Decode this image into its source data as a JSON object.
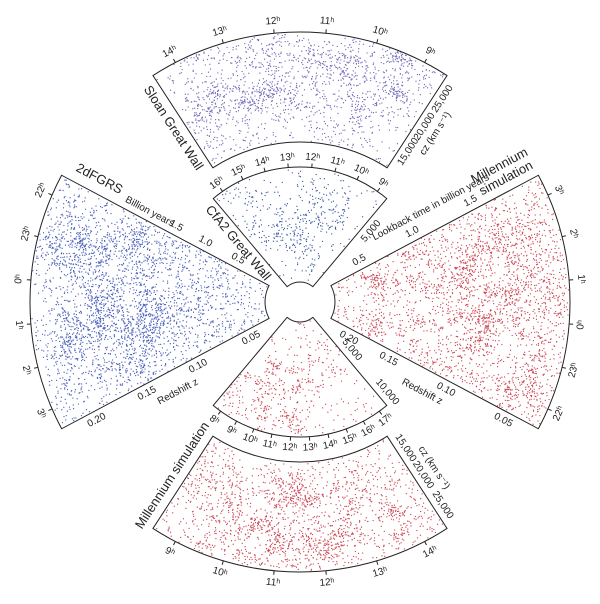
{
  "sloan": {
    "label": "Sloan Great Wall",
    "arc_ticks": [
      "14ʰ",
      "13ʰ",
      "12ʰ",
      "11ʰ",
      "10ʰ",
      "9ʰ"
    ],
    "cz_ticks": [
      "15,000",
      "20,000",
      "25,000"
    ],
    "cz_label": "cz (km s⁻¹)"
  },
  "cfa2": {
    "label": "CfA2 Great Wall",
    "arc_ticks": [
      "16ʰ",
      "15ʰ",
      "14ʰ",
      "13ʰ",
      "12ʰ",
      "11ʰ",
      "10ʰ",
      "9ʰ"
    ],
    "cz_ticks": [
      "5,000"
    ]
  },
  "twodf": {
    "label": "2dFGRS",
    "arc_ticks": [
      "22ʰ",
      "23ʰ",
      "0ʰ",
      "1ʰ",
      "2ʰ",
      "3ʰ"
    ],
    "time_label": "Billion years",
    "time_ticks": [
      "1.5",
      "1.0",
      "0.5"
    ],
    "z_label": "Redshift z",
    "z_ticks": [
      "0.05",
      "0.10",
      "0.15",
      "0.20"
    ]
  },
  "millennium_right": {
    "label": [
      "Millennium",
      "simulation"
    ],
    "arc_ticks": [
      "3ʰ",
      "2ʰ",
      "1ʰ",
      "0ʰ",
      "23ʰ",
      "22ʰ"
    ],
    "time_label": "Lookback time in billion years",
    "time_ticks": [
      "1.5",
      "1.0",
      "0.5"
    ],
    "z_label": "Redshift z",
    "z_ticks": [
      "0.20",
      "0.15",
      "0.10",
      "0.05"
    ]
  },
  "millennium_inner": {
    "arc_ticks": [
      "8ʰ",
      "9ʰ",
      "10ʰ",
      "11ʰ",
      "12ʰ",
      "13ʰ",
      "14ʰ",
      "15ʰ",
      "16ʰ",
      "17ʰ"
    ],
    "cz_ticks": [
      "5,000",
      "10,000"
    ]
  },
  "millennium_outer": {
    "label": "Millennium simulation",
    "arc_ticks": [
      "9ʰ",
      "10ʰ",
      "11ʰ",
      "12ʰ",
      "13ʰ",
      "14ʰ"
    ],
    "cz_ticks": [
      "15,000",
      "20,000",
      "25,000"
    ],
    "cz_label": "cz (km s⁻¹)"
  }
}
